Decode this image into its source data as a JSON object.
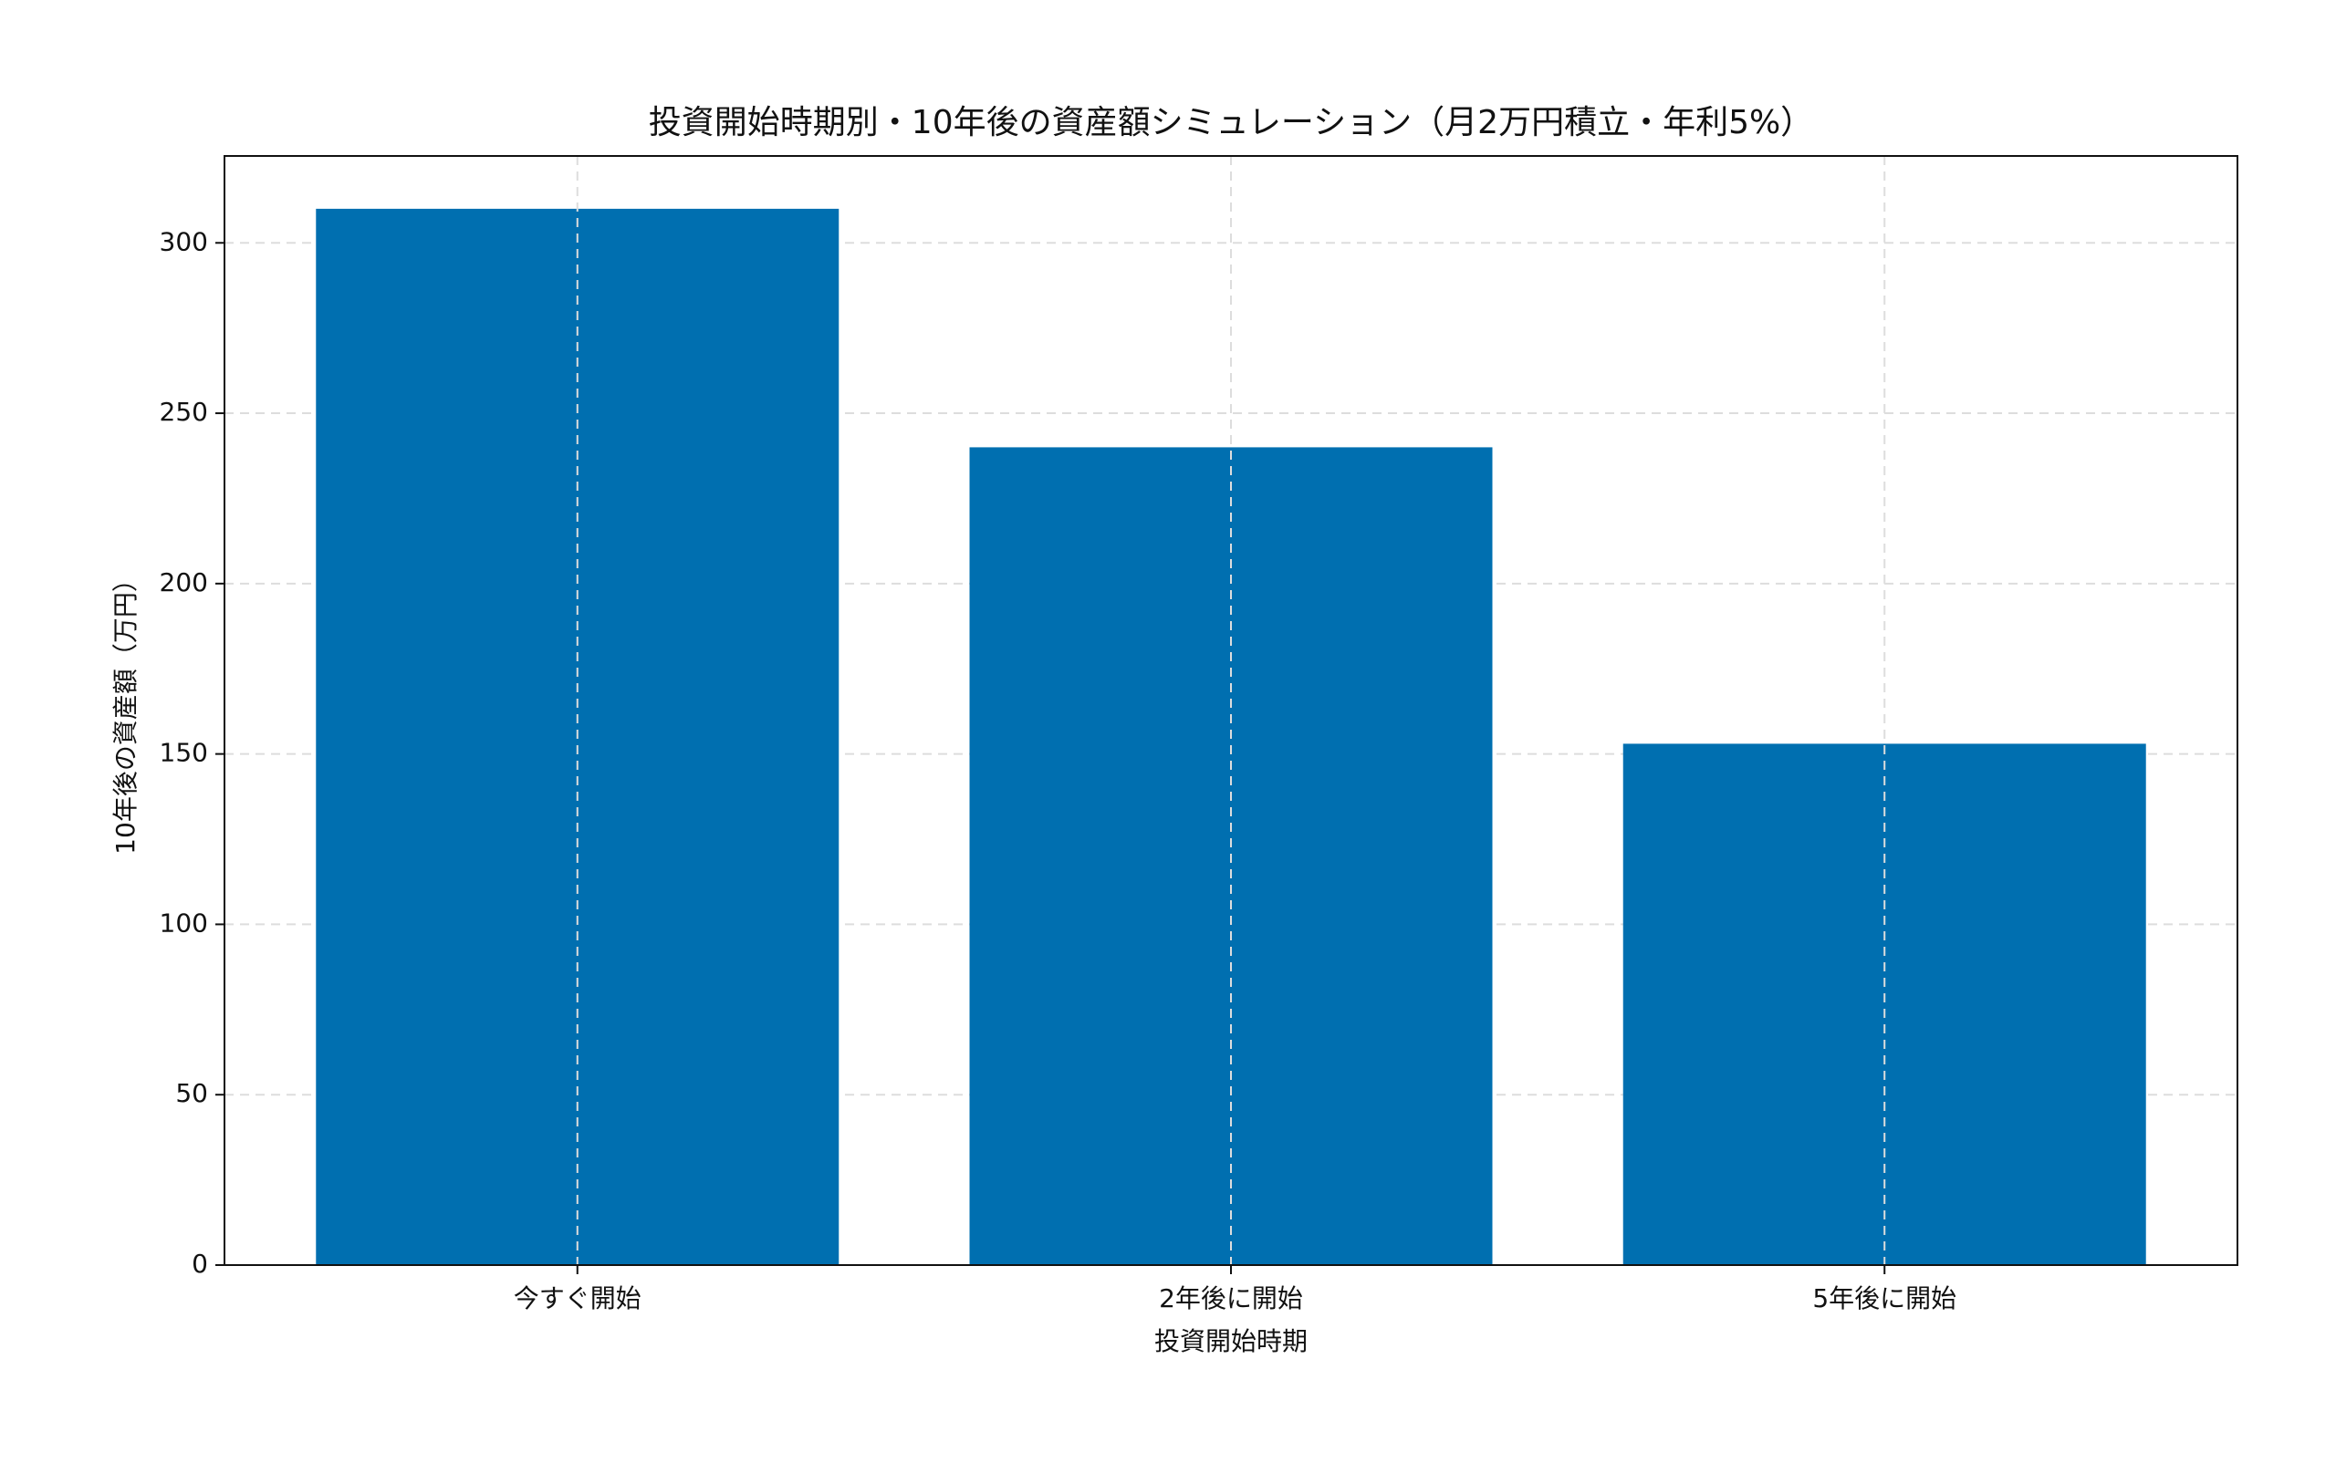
{
  "chart_data": {
    "type": "bar",
    "title": "投資開始時期別・10年後の資産額シミュレーション（月2万円積立・年利5%）",
    "x_label": "投資開始時期",
    "y_label": "10年後の資産額（万円）",
    "categories": [
      "今すぐ開始",
      "2年後に開始",
      "5年後に開始"
    ],
    "values": [
      310,
      240,
      153
    ],
    "color": "#006fb0",
    "ylim": [
      0,
      325.5
    ],
    "yticks": [
      0,
      50,
      100,
      150,
      200,
      250,
      300
    ],
    "grid": true
  }
}
